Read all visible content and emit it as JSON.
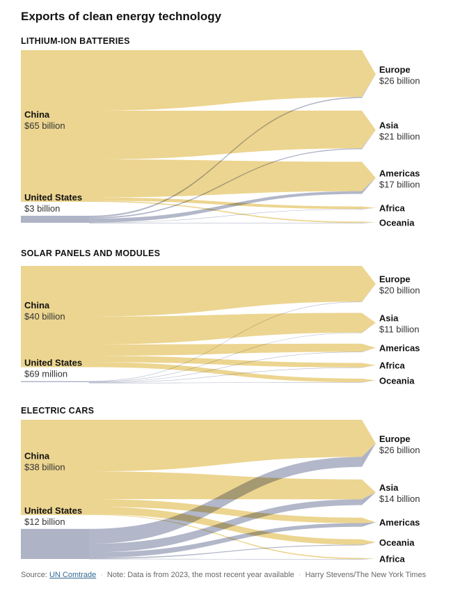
{
  "title": "Exports of clean energy technology",
  "colors": {
    "china": "#ecd590",
    "us": "#aeb3c6"
  },
  "chart_data": [
    {
      "type": "sankey",
      "title": "LITHIUM-ION BATTERIES",
      "sources": [
        {
          "key": "china",
          "name": "China",
          "value_label": "$65 billion",
          "value": 65
        },
        {
          "key": "us",
          "name": "United States",
          "value_label": "$3 billion",
          "value": 3
        }
      ],
      "targets": [
        {
          "key": "europe",
          "name": "Europe",
          "value_label": "$26 billion",
          "value": 26
        },
        {
          "key": "asia",
          "name": "Asia",
          "value_label": "$21 billion",
          "value": 21
        },
        {
          "key": "americas",
          "name": "Americas",
          "value_label": "$17 billion",
          "value": 17
        },
        {
          "key": "africa",
          "name": "Africa",
          "value_label": "",
          "value": 1.5
        },
        {
          "key": "oceania",
          "name": "Oceania",
          "value_label": "",
          "value": 0.5
        }
      ],
      "flows": [
        {
          "source": "china",
          "target": "europe",
          "value": 25.5
        },
        {
          "source": "china",
          "target": "asia",
          "value": 20.5
        },
        {
          "source": "china",
          "target": "americas",
          "value": 16.0
        },
        {
          "source": "china",
          "target": "africa",
          "value": 1.4
        },
        {
          "source": "china",
          "target": "oceania",
          "value": 0.45
        },
        {
          "source": "us",
          "target": "europe",
          "value": 0.6
        },
        {
          "source": "us",
          "target": "asia",
          "value": 0.5
        },
        {
          "source": "us",
          "target": "americas",
          "value": 1.5
        },
        {
          "source": "us",
          "target": "africa",
          "value": 0.05
        },
        {
          "source": "us",
          "target": "oceania",
          "value": 0.05
        }
      ]
    },
    {
      "type": "sankey",
      "title": "SOLAR PANELS AND MODULES",
      "sources": [
        {
          "key": "china",
          "name": "China",
          "value_label": "$40 billion",
          "value": 40
        },
        {
          "key": "us",
          "name": "United States",
          "value_label": "$69 million",
          "value": 0.069
        }
      ],
      "targets": [
        {
          "key": "europe",
          "name": "Europe",
          "value_label": "$20 billion",
          "value": 20
        },
        {
          "key": "asia",
          "name": "Asia",
          "value_label": "$11 billion",
          "value": 11
        },
        {
          "key": "americas",
          "name": "Americas",
          "value_label": "",
          "value": 4.5
        },
        {
          "key": "africa",
          "name": "Africa",
          "value_label": "",
          "value": 2.5
        },
        {
          "key": "oceania",
          "name": "Oceania",
          "value_label": "",
          "value": 2
        }
      ],
      "flows": [
        {
          "source": "china",
          "target": "europe",
          "value": 20
        },
        {
          "source": "china",
          "target": "asia",
          "value": 11
        },
        {
          "source": "china",
          "target": "americas",
          "value": 4.5
        },
        {
          "source": "china",
          "target": "africa",
          "value": 2.5
        },
        {
          "source": "china",
          "target": "oceania",
          "value": 2
        },
        {
          "source": "us",
          "target": "europe",
          "value": 0.02
        },
        {
          "source": "us",
          "target": "asia",
          "value": 0.015
        },
        {
          "source": "us",
          "target": "americas",
          "value": 0.025
        },
        {
          "source": "us",
          "target": "africa",
          "value": 0.005
        },
        {
          "source": "us",
          "target": "oceania",
          "value": 0.004
        }
      ]
    },
    {
      "type": "sankey",
      "title": "ELECTRIC CARS",
      "sources": [
        {
          "key": "china",
          "name": "China",
          "value_label": "$38 billion",
          "value": 38
        },
        {
          "key": "us",
          "name": "United States",
          "value_label": "$12 billion",
          "value": 12
        }
      ],
      "targets": [
        {
          "key": "europe",
          "name": "Europe",
          "value_label": "$26 billion",
          "value": 26
        },
        {
          "key": "asia",
          "name": "Asia",
          "value_label": "$14 billion",
          "value": 14
        },
        {
          "key": "americas",
          "name": "Americas",
          "value_label": "",
          "value": 5
        },
        {
          "key": "oceania",
          "name": "Oceania",
          "value_label": "",
          "value": 3
        },
        {
          "key": "africa",
          "name": "Africa",
          "value_label": "",
          "value": 0.3
        }
      ],
      "flows": [
        {
          "source": "china",
          "target": "europe",
          "value": 20.5
        },
        {
          "source": "china",
          "target": "asia",
          "value": 11
        },
        {
          "source": "china",
          "target": "americas",
          "value": 3
        },
        {
          "source": "china",
          "target": "oceania",
          "value": 3
        },
        {
          "source": "china",
          "target": "africa",
          "value": 0.3
        },
        {
          "source": "us",
          "target": "europe",
          "value": 5.5
        },
        {
          "source": "us",
          "target": "asia",
          "value": 3.2
        },
        {
          "source": "us",
          "target": "americas",
          "value": 2.0
        },
        {
          "source": "us",
          "target": "oceania",
          "value": 0.4
        },
        {
          "source": "us",
          "target": "africa",
          "value": 0.05
        }
      ]
    }
  ],
  "footer": {
    "source_prefix": "Source: ",
    "source_link": "UN Comtrade",
    "note": "Note: Data is from 2023, the most recent year available",
    "credit": "Harry Stevens/The New York Times"
  }
}
